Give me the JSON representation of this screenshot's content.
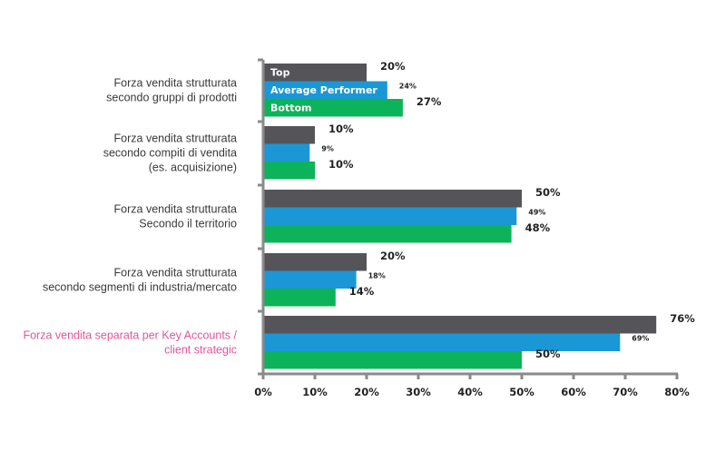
{
  "chart_data": {
    "type": "bar",
    "orientation": "horizontal",
    "categories": [
      [
        "Forza vendita strutturata",
        "secondo gruppi di prodotti"
      ],
      [
        "Forza vendita strutturata",
        "secondo compiti di vendita",
        "(es. acquisizione)"
      ],
      [
        "Forza vendita strutturata",
        "Secondo il territorio"
      ],
      [
        "Forza vendita strutturata",
        "secondo segmenti di industria/mercato"
      ],
      [
        "Forza vendita separata per Key Accounts /",
        "client strategic"
      ]
    ],
    "highlight_category_index": 4,
    "highlight_color": "#e3559a",
    "series": [
      {
        "name": "Top",
        "color": "#555559",
        "values": [
          20,
          10,
          50,
          20,
          76
        ],
        "labels": [
          "20%",
          "10%",
          "50%",
          "20%",
          "76%"
        ]
      },
      {
        "name": "Average Performer",
        "color": "#1b97d6",
        "values": [
          24,
          9,
          49,
          18,
          69
        ],
        "labels": [
          "24%",
          "9%",
          "49%",
          "18%",
          "69%"
        ]
      },
      {
        "name": "Bottom",
        "color": "#0db35a",
        "values": [
          27,
          10,
          48,
          14,
          50
        ],
        "labels": [
          "27%",
          "10%",
          "48%",
          "14%",
          "50%"
        ]
      }
    ],
    "xlim": [
      0,
      80
    ],
    "xticks": [
      0,
      10,
      20,
      30,
      40,
      50,
      60,
      70,
      80
    ],
    "xtick_labels": [
      "0%",
      "10%",
      "20%",
      "30%",
      "40%",
      "50%",
      "60%",
      "70%",
      "80%"
    ],
    "legend": "inside first group bars",
    "grid": false
  }
}
